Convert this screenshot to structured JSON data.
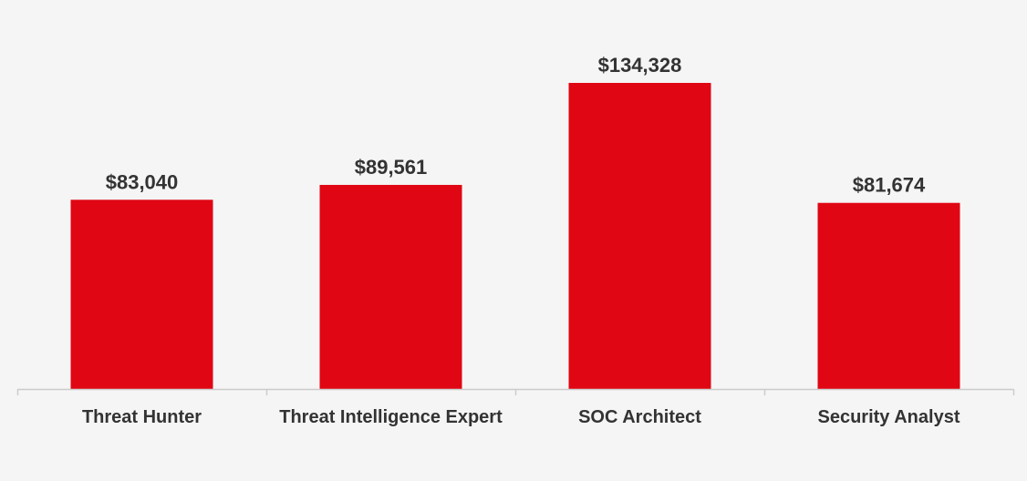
{
  "chart_data": {
    "type": "bar",
    "categories": [
      "Threat Hunter",
      "Threat Intelligence Expert",
      "SOC Architect",
      "Security Analyst"
    ],
    "values": [
      83040,
      89561,
      134328,
      81674
    ],
    "data_labels": [
      "$83,040",
      "$89,561",
      "$134,328",
      "$81,674"
    ],
    "title": "",
    "xlabel": "",
    "ylabel": "",
    "ylim": [
      0,
      134328
    ],
    "grid": false,
    "legend": "none",
    "bar_color": "#e00613",
    "axis_color": "#cccccc",
    "text_color": "#333333",
    "background": "#f5f5f5"
  }
}
